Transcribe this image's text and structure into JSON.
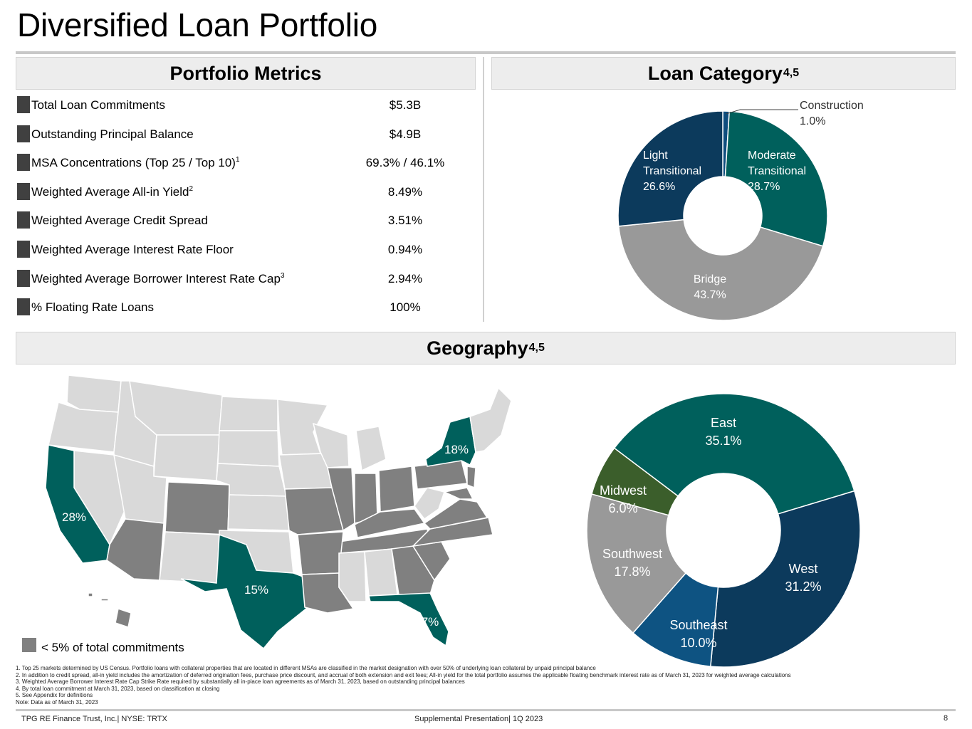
{
  "page": {
    "title": "Diversified Loan Portfolio"
  },
  "portfolio_metrics": {
    "header": "Portfolio Metrics",
    "rows": [
      {
        "label": "Total Loan Commitments",
        "sup": "",
        "value": "$5.3B"
      },
      {
        "label": "Outstanding Principal Balance",
        "sup": "",
        "value": "$4.9B"
      },
      {
        "label": "MSA Concentrations (Top 25 / Top 10)",
        "sup": "1",
        "value": "69.3% / 46.1%"
      },
      {
        "label": "Weighted Average All-in Yield",
        "sup": "2",
        "value": "8.49%"
      },
      {
        "label": "Weighted Average Credit Spread",
        "sup": "",
        "value": "3.51%"
      },
      {
        "label": "Weighted Average Interest Rate Floor",
        "sup": "",
        "value": "0.94%"
      },
      {
        "label": "Weighted Average Borrower Interest Rate Cap",
        "sup": "3",
        "value": "2.94%"
      },
      {
        "label": "% Floating Rate Loans",
        "sup": "",
        "value": "100%"
      }
    ]
  },
  "loan_category": {
    "header": "Loan Category",
    "header_sup": "4,5"
  },
  "geography": {
    "header": "Geography",
    "header_sup": "4,5",
    "map_labels": {
      "california": "28%",
      "texas": "15%",
      "new_york": "18%",
      "florida": "7%"
    },
    "legend": "< 5% of total commitments",
    "colors": {
      "highlight": "#00605c",
      "minor": "#808080",
      "other": "#d9d9d9"
    }
  },
  "chart_data": [
    {
      "type": "pie",
      "title": "",
      "donut": true,
      "slices": [
        {
          "name": "Construction",
          "value": 1.0,
          "label_pct": "1.0%",
          "color": "#0e4d7e"
        },
        {
          "name": "Moderate Transitional",
          "value": 28.7,
          "label_pct": "28.7%",
          "color": "#00605c"
        },
        {
          "name": "Bridge",
          "value": 43.7,
          "label_pct": "43.7%",
          "color": "#999999"
        },
        {
          "name": "Light Transitional",
          "value": 26.6,
          "label_pct": "26.6%",
          "color": "#0c3a5c"
        }
      ]
    },
    {
      "type": "pie",
      "title": "",
      "donut": true,
      "slices": [
        {
          "name": "East",
          "value": 35.1,
          "label_pct": "35.1%",
          "color": "#00605c"
        },
        {
          "name": "West",
          "value": 31.2,
          "label_pct": "31.2%",
          "color": "#0c3a5c"
        },
        {
          "name": "Southeast",
          "value": 10.0,
          "label_pct": "10.0%",
          "color": "#0e5382"
        },
        {
          "name": "Southwest",
          "value": 17.8,
          "label_pct": "17.8%",
          "color": "#999999"
        },
        {
          "name": "Midwest",
          "value": 6.0,
          "label_pct": "6.0%",
          "color": "#3b5e2b"
        }
      ]
    }
  ],
  "footnotes": [
    "1. Top 25 markets determined by US Census. Portfolio loans with collateral properties that are located in different MSAs are classified in the market designation with over 50% of underlying loan collateral by unpaid principal balance",
    "2. In addition to credit spread, all-in yield includes the amortization of deferred origination fees, purchase price discount, and accrual of both extension and exit fees; All-in yield for the total portfolio assumes the applicable floating benchmark interest rate as of March 31, 2023 for weighted average calculations",
    "3. Weighted Average Borrower Interest Rate Cap Strike Rate required by substantially all in-place loan agreements as of March 31, 2023, based on outstanding principal balances",
    "4. By total loan commitment at March 31, 2023, based on classification at closing",
    "5. See Appendix for definitions",
    "Note: Data as of March 31, 2023"
  ],
  "footer": {
    "left": "TPG RE Finance Trust, Inc.| NYSE: TRTX",
    "center": "Supplemental Presentation| 1Q 2023",
    "page_number": "8"
  }
}
